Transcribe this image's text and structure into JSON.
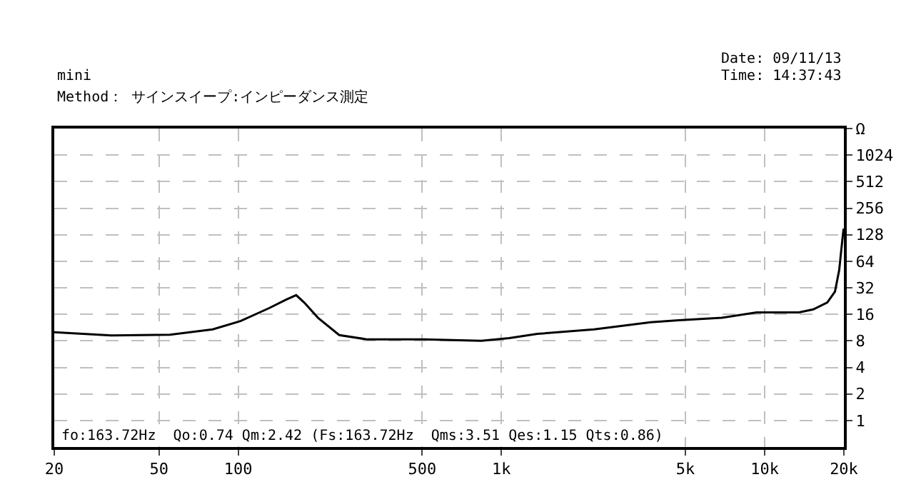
{
  "chart_data": {
    "type": "line",
    "subtitle": "mini",
    "annotations": [
      "Method： サインスイープ:インピーダンス測定",
      "Date: 09/11/13",
      "Time: 14:37:43",
      "fo:163.72Hz  Qo:0.74 Qm:2.42 (Fs:163.72Hz  Qms:3.51 Qes:1.15 Qts:0.86)"
    ],
    "x": [
      20,
      33,
      55,
      80,
      102,
      131,
      152,
      166,
      178,
      201,
      242,
      310,
      508,
      839,
      1070,
      1370,
      2250,
      3690,
      4710,
      6870,
      9320,
      11970,
      13500,
      15300,
      17300,
      18500,
      19200,
      19700,
      19950
    ],
    "series": [
      {
        "color": "#000000",
        "values": [
          10,
          9.2,
          9.4,
          10.8,
          13.4,
          18.8,
          23.5,
          26.4,
          21.8,
          14.6,
          9.3,
          8.3,
          8.3,
          8,
          8.6,
          9.6,
          10.8,
          13,
          13.7,
          14.6,
          16.8,
          16.8,
          16.8,
          18.2,
          21.8,
          29,
          51,
          107,
          150
        ]
      }
    ],
    "log": "xy",
    "xlim": [
      20,
      20000
    ],
    "xticks": [
      {
        "value": 20,
        "label": "20"
      },
      {
        "value": 50,
        "label": "50"
      },
      {
        "value": 100,
        "label": "100"
      },
      {
        "value": 500,
        "label": "500"
      },
      {
        "value": 1000,
        "label": "1k"
      },
      {
        "value": 5000,
        "label": "5k"
      },
      {
        "value": 10000,
        "label": "10k"
      },
      {
        "value": 20000,
        "label": "20k"
      }
    ],
    "ylim": [
      0.5,
      2048
    ],
    "yticks": [
      1,
      2,
      4,
      8,
      16,
      32,
      64,
      128,
      256,
      512,
      1024,
      {
        "value": 2048,
        "label": "Ω"
      }
    ],
    "grid": true,
    "marker": "none",
    "line_style": "solid"
  }
}
